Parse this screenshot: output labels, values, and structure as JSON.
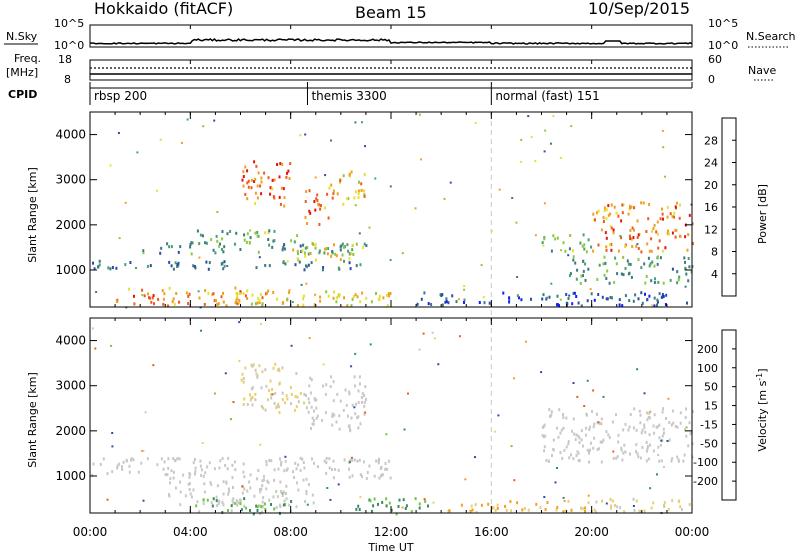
{
  "header": {
    "station": "Hokkaido (fitACF)",
    "beam": "Beam 15",
    "date": "10/Sep/2015"
  },
  "summary_panel": {
    "left_labels": {
      "nsky": "N.Sky",
      "freq_line1": "Freq.",
      "freq_line2": "[MHz]",
      "cpid": "CPID"
    },
    "right_labels": {
      "nsearch": "N.Search",
      "nave": "Nave"
    },
    "nsky_ticks": [
      "10^5",
      "10^0"
    ],
    "nsearch_ticks": [
      "10^5",
      "10^0"
    ],
    "freq_ticks": [
      "18",
      "8"
    ],
    "nave_ticks": [
      "60",
      "0"
    ],
    "cpid_segments": [
      {
        "label": "rbsp 200",
        "start_hour": 0
      },
      {
        "label": "themis 3300",
        "start_hour": 8.67
      },
      {
        "label": "normal (fast) 151",
        "start_hour": 16
      }
    ]
  },
  "x_axis": {
    "label": "Time UT",
    "ticks": [
      "00:00",
      "04:00",
      "08:00",
      "12:00",
      "16:00",
      "20:00",
      "00:00"
    ]
  },
  "colors": {
    "power_scale": [
      "#1a1aff",
      "#2a4fa0",
      "#3a7a80",
      "#4aa070",
      "#8cc840",
      "#e8e030",
      "#f0a020",
      "#ee5a20",
      "#e81010"
    ],
    "velocity_scale": [
      "#e81010",
      "#ee5a20",
      "#f0a020",
      "#e8d070",
      "#c8c8c8",
      "#70c840",
      "#3a8a60",
      "#2a4fa0",
      "#1a1ad0"
    ]
  },
  "chart_data": [
    {
      "type": "heatmap",
      "title": "",
      "variable": "Power",
      "xlabel": "Time UT",
      "ylabel": "Slant Range [km]",
      "xlim_hours": [
        0,
        24
      ],
      "ylim": [
        180,
        4500
      ],
      "yticks": [
        1000,
        2000,
        3000,
        4000
      ],
      "colorbar": {
        "label": "Power [dB]",
        "range": [
          0,
          32
        ],
        "ticks": [
          4,
          8,
          12,
          16,
          20,
          24,
          28
        ]
      },
      "regions": [
        {
          "t": [
            1.0,
            7.0
          ],
          "r": [
            200,
            600
          ],
          "v": 24
        },
        {
          "t": [
            5.0,
            12.0
          ],
          "r": [
            200,
            550
          ],
          "v": 20
        },
        {
          "t": [
            0.0,
            11.0
          ],
          "r": [
            1000,
            1200
          ],
          "v": 9
        },
        {
          "t": [
            2.0,
            11.0
          ],
          "r": [
            1350,
            1600
          ],
          "v": 10
        },
        {
          "t": [
            4.0,
            8.5
          ],
          "r": [
            1600,
            1900
          ],
          "v": 14
        },
        {
          "t": [
            6.0,
            8.0
          ],
          "r": [
            2400,
            3400
          ],
          "v": 26
        },
        {
          "t": [
            8.5,
            9.5
          ],
          "r": [
            2000,
            2800
          ],
          "v": 26
        },
        {
          "t": [
            9.5,
            11.0
          ],
          "r": [
            2400,
            3200
          ],
          "v": 22
        },
        {
          "t": [
            8.0,
            11.0
          ],
          "r": [
            1200,
            1600
          ],
          "v": 19
        },
        {
          "t": [
            18.0,
            20.0
          ],
          "r": [
            1400,
            1800
          ],
          "v": 14
        },
        {
          "t": [
            20.0,
            24.0
          ],
          "r": [
            1400,
            2500
          ],
          "v": 25
        },
        {
          "t": [
            19.0,
            24.0
          ],
          "r": [
            700,
            1300
          ],
          "v": 12
        },
        {
          "t": [
            13.0,
            24.0
          ],
          "r": [
            200,
            500
          ],
          "v": 6
        }
      ]
    },
    {
      "type": "heatmap",
      "title": "",
      "variable": "Velocity",
      "xlabel": "Time UT",
      "ylabel": "Slant Range [km]",
      "xlim_hours": [
        0,
        24
      ],
      "ylim": [
        180,
        4500
      ],
      "yticks": [
        1000,
        2000,
        3000,
        4000
      ],
      "colorbar": {
        "label": "Velocity [m s^-1]",
        "ticks": [
          200,
          100,
          50,
          15,
          -15,
          -50,
          -100,
          -200
        ]
      },
      "regions": [
        {
          "t": [
            0.0,
            12.0
          ],
          "r": [
            900,
            1400
          ],
          "v": 0
        },
        {
          "t": [
            3.0,
            9.0
          ],
          "r": [
            300,
            900
          ],
          "v": 0
        },
        {
          "t": [
            6.0,
            8.5
          ],
          "r": [
            2400,
            3500
          ],
          "v": -20
        },
        {
          "t": [
            8.5,
            11.0
          ],
          "r": [
            2000,
            3200
          ],
          "v": 0
        },
        {
          "t": [
            4.0,
            8.0
          ],
          "r": [
            150,
            500
          ],
          "v": 40
        },
        {
          "t": [
            10.5,
            13.5
          ],
          "r": [
            150,
            500
          ],
          "v": 60
        },
        {
          "t": [
            14.0,
            20.0
          ],
          "r": [
            200,
            450
          ],
          "v": -60
        },
        {
          "t": [
            18.0,
            24.0
          ],
          "r": [
            1300,
            2500
          ],
          "v": 0
        },
        {
          "t": [
            20.0,
            24.0
          ],
          "r": [
            200,
            500
          ],
          "v": -20
        }
      ]
    }
  ]
}
